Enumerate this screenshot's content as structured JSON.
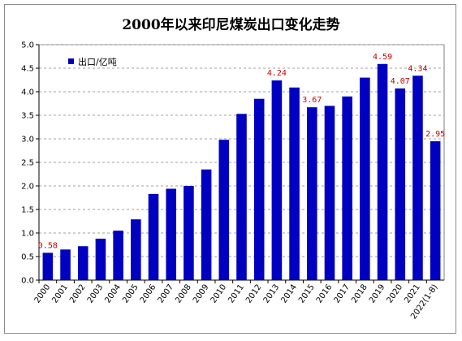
{
  "chart_data": {
    "type": "bar",
    "title": "2000年以来印尼煤炭出口变化走势",
    "categories": [
      "2000",
      "2001",
      "2002",
      "2003",
      "2004",
      "2005",
      "2006",
      "2007",
      "2008",
      "2009",
      "2010",
      "2011",
      "2012",
      "2013",
      "2014",
      "2015",
      "2016",
      "2017",
      "2018",
      "2019",
      "2020",
      "2021",
      "2022(1-8)"
    ],
    "series": [
      {
        "name": "出口/亿吨",
        "color": "#0000c0",
        "values": [
          0.58,
          0.65,
          0.72,
          0.88,
          1.05,
          1.29,
          1.83,
          1.94,
          2.0,
          2.35,
          2.98,
          3.53,
          3.85,
          4.24,
          4.09,
          3.67,
          3.7,
          3.9,
          4.3,
          4.59,
          4.07,
          4.34,
          2.95
        ]
      }
    ],
    "data_labels": {
      "2000": "0.58",
      "2013": "4.24",
      "2015": "3.67",
      "2019": "4.59",
      "2020": "4.07",
      "2021": "4.34",
      "2022(1-8)": "2.95"
    },
    "data_label_color": "#cc0000",
    "ylim": [
      0,
      5.0
    ],
    "yticks": [
      "0.0",
      "0.5",
      "1.0",
      "1.5",
      "2.0",
      "2.5",
      "3.0",
      "3.5",
      "4.0",
      "4.5",
      "5.0"
    ],
    "grid": true,
    "legend_position": "top-left",
    "xlabel": "",
    "ylabel": ""
  }
}
